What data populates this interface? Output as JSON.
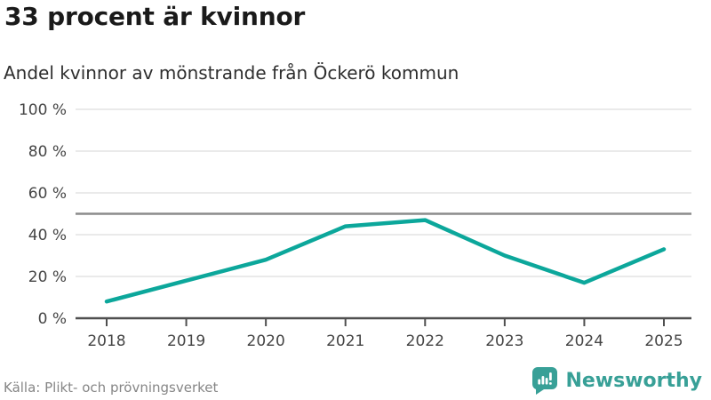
{
  "header": {
    "title": "33 procent är kvinnor",
    "subtitle": "Andel kvinnor av mönstrande från Öckerö kommun"
  },
  "footer": {
    "source": "Källa: Plikt- och prövningsverket",
    "brand": "Newsworthy"
  },
  "colors": {
    "line": "#0ca79b",
    "brand": "#38a097",
    "grid": "#e4e4e4",
    "axis": "#4f4f4f",
    "reference": "#8b8b8b",
    "tick_label": "#454545"
  },
  "chart_data": {
    "type": "line",
    "title": "33 procent är kvinnor",
    "subtitle": "Andel kvinnor av mönstrande från Öckerö kommun",
    "x": [
      2018,
      2019,
      2020,
      2021,
      2022,
      2023,
      2024,
      2025
    ],
    "values": [
      8,
      18,
      28,
      44,
      47,
      30,
      17,
      33
    ],
    "series_name": "Andel kvinnor av mönstrande (%)",
    "ylim": [
      0,
      100
    ],
    "yticks": [
      0,
      20,
      40,
      60,
      80,
      100
    ],
    "ytick_suffix": " %",
    "reference_line": 50,
    "grid": true,
    "legend": false,
    "xlabel": "",
    "ylabel": ""
  }
}
